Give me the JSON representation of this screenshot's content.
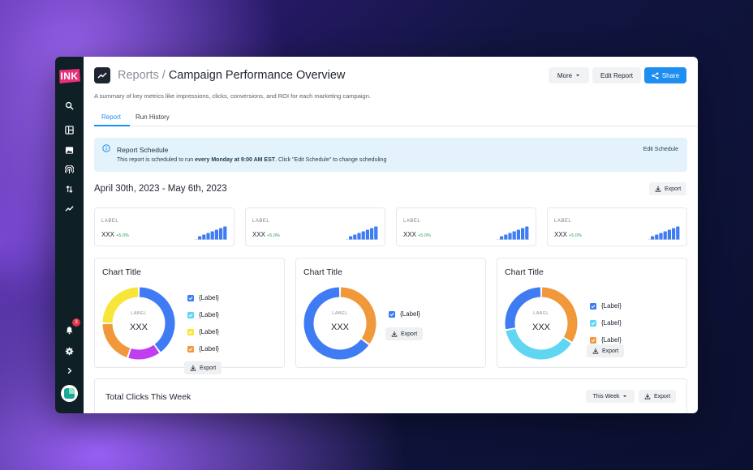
{
  "app": {
    "logo": "INK",
    "notification_count": "3"
  },
  "header": {
    "breadcrumb_root": "Reports",
    "separator": "/",
    "title": "Campaign Performance Overview",
    "subtitle": "A summary of key metrics like impressions, clicks, conversions, and ROI for each marketing campaign.",
    "more_label": "More",
    "edit_label": "Edit Report",
    "share_label": "Share"
  },
  "tabs": [
    {
      "label": "Report",
      "active": true
    },
    {
      "label": "Run History",
      "active": false
    }
  ],
  "schedule": {
    "title": "Report Schedule",
    "text_before": "This report is scheduled to run ",
    "text_bold": "every Monday at 9:00 AM EST",
    "text_after": ". Click \"Edit Schedule\" to change scheduling",
    "edit_label": "Edit Schedule"
  },
  "date_range": "April 30th, 2023 - May 6th, 2023",
  "export_label": "Export",
  "kpis": [
    {
      "label": "LABEL",
      "value": "XXX",
      "delta": "+5.0%",
      "bars": [
        1,
        2,
        3,
        4,
        5,
        6,
        7
      ]
    },
    {
      "label": "LABEL",
      "value": "XXX",
      "delta": "+5.0%",
      "bars": [
        1,
        2,
        3,
        4,
        5,
        6,
        7
      ]
    },
    {
      "label": "LABEL",
      "value": "XXX",
      "delta": "+5.0%",
      "bars": [
        1,
        2,
        3,
        4,
        5,
        6,
        7
      ]
    },
    {
      "label": "LABEL",
      "value": "XXX",
      "delta": "+5.0%",
      "bars": [
        1,
        2,
        3,
        4,
        5,
        6,
        7
      ]
    }
  ],
  "charts": [
    {
      "title": "Chart Title",
      "center_label": "LABEL",
      "center_value": "XXX",
      "segments": [
        {
          "label": "{Label}",
          "value": 40,
          "color": "#3f7cf4"
        },
        {
          "label": "{Label}",
          "value": 15,
          "color": "#c13ef0"
        },
        {
          "label": "{Label}",
          "value": 20,
          "color": "#f1993a"
        },
        {
          "label": "{Label}",
          "value": 25,
          "color": "#f8e53a"
        }
      ],
      "legend": [
        {
          "label": "{Label}",
          "color": "#3f7cf4"
        },
        {
          "label": "{Label}",
          "color": "#5fd6f2"
        },
        {
          "label": "{Label}",
          "color": "#f8e53a"
        },
        {
          "label": "{Label}",
          "color": "#f1993a"
        }
      ]
    },
    {
      "title": "Chart Title",
      "center_label": "LABEL",
      "center_value": "XXX",
      "segments": [
        {
          "label": "{Label}",
          "value": 35,
          "color": "#f1993a"
        },
        {
          "label": "{Label}",
          "value": 65,
          "color": "#3f7cf4"
        }
      ],
      "legend": [
        {
          "label": "{Label}",
          "color": "#3f7cf4"
        }
      ]
    },
    {
      "title": "Chart Title",
      "center_label": "LABEL",
      "center_value": "XXX",
      "segments": [
        {
          "label": "{Label}",
          "value": 34,
          "color": "#f1993a"
        },
        {
          "label": "{Label}",
          "value": 38,
          "color": "#5fd6f2"
        },
        {
          "label": "{Label}",
          "value": 28,
          "color": "#3f7cf4"
        }
      ],
      "legend": [
        {
          "label": "{Label}",
          "color": "#3f7cf4"
        },
        {
          "label": "{Label}",
          "color": "#5fd6f2"
        },
        {
          "label": "{Label}",
          "color": "#f1993a"
        }
      ]
    }
  ],
  "total_clicks": {
    "title": "Total Clicks This Week",
    "period_label": "This Week"
  },
  "colors": {
    "accent": "#1e8ff0",
    "positive": "#2f9e55",
    "kpi_bar": "#3f7cf4"
  }
}
